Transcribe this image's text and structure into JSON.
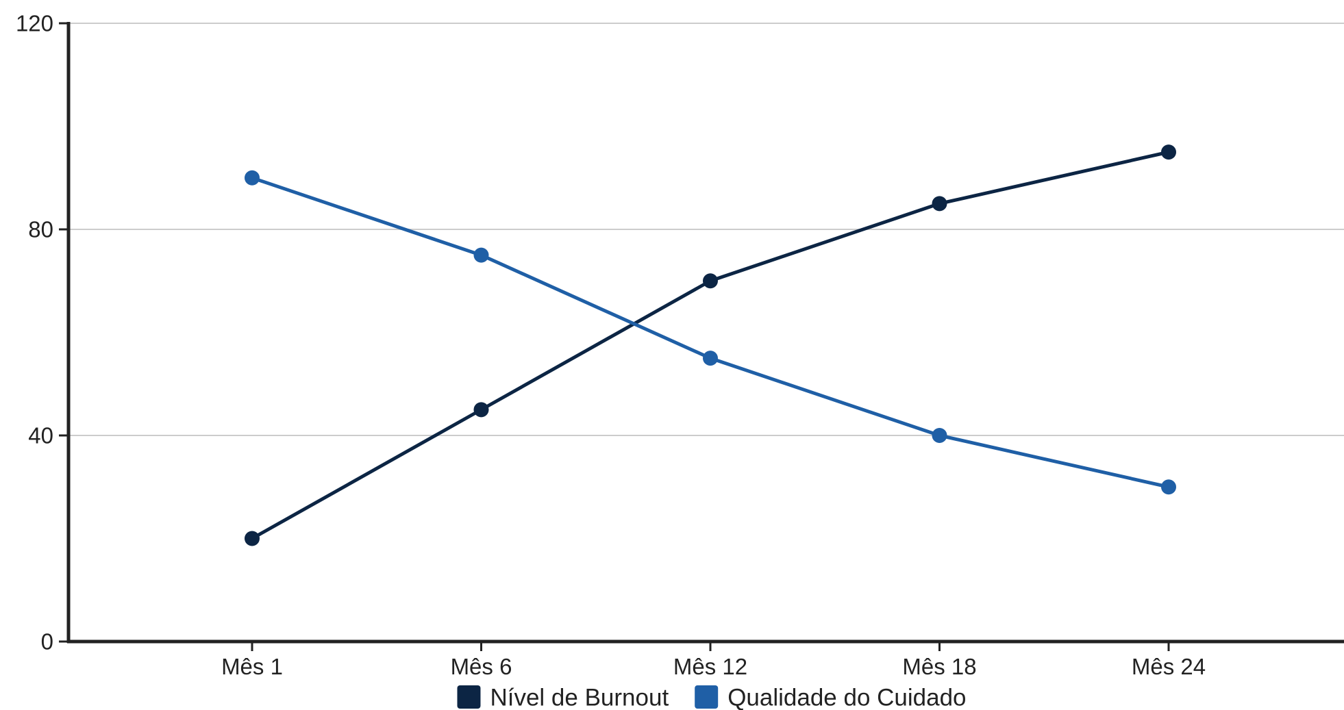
{
  "chart_data": {
    "type": "line",
    "categories": [
      "Mês 1",
      "Mês 6",
      "Mês 12",
      "Mês 18",
      "Mês 24"
    ],
    "series": [
      {
        "name": "Nível de Burnout",
        "values": [
          20,
          45,
          70,
          85,
          95
        ],
        "color": "#0c2544"
      },
      {
        "name": "Qualidade do Cuidado",
        "values": [
          90,
          75,
          55,
          40,
          30
        ],
        "color": "#1f5fa6"
      }
    ],
    "ylim": [
      0,
      120
    ],
    "yticks": [
      0,
      40,
      80,
      120
    ],
    "grid": true,
    "legend_position": "bottom",
    "title": "",
    "xlabel": "",
    "ylabel": ""
  }
}
